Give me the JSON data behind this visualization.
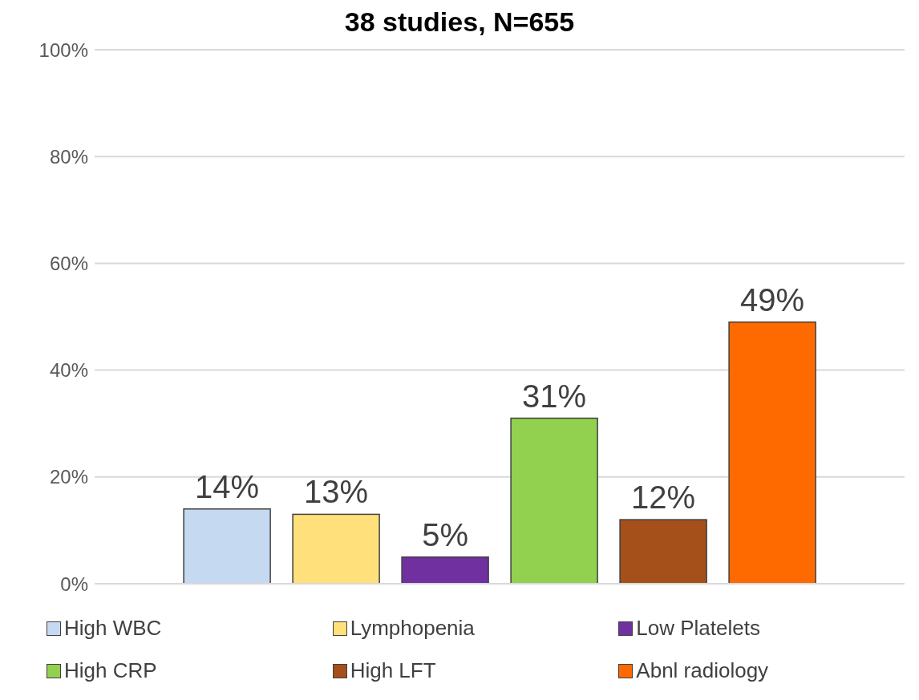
{
  "chart_data": {
    "type": "bar",
    "title": "38 studies, N=655",
    "categories": [
      null
    ],
    "series": [
      {
        "name": "High WBC",
        "color": "#c5d9f1",
        "values": [
          14
        ],
        "value_labels": [
          "14%"
        ]
      },
      {
        "name": "Lymphopenia",
        "color": "#ffe07a",
        "values": [
          13
        ],
        "value_labels": [
          "13%"
        ]
      },
      {
        "name": "Low Platelets",
        "color": "#7030a0",
        "values": [
          5
        ],
        "value_labels": [
          "5%"
        ]
      },
      {
        "name": "High CRP",
        "color": "#92d050",
        "values": [
          31
        ],
        "value_labels": [
          "31%"
        ]
      },
      {
        "name": "High LFT",
        "color": "#a5501b",
        "values": [
          12
        ],
        "value_labels": [
          "12%"
        ]
      },
      {
        "name": "Abnl radiology",
        "color": "#ff6a00",
        "values": [
          49
        ],
        "value_labels": [
          "49%"
        ]
      }
    ],
    "ylim": [
      0,
      100
    ],
    "yticks": [
      {
        "value": 0,
        "label": "0%"
      },
      {
        "value": 20,
        "label": "20%"
      },
      {
        "value": 40,
        "label": "40%"
      },
      {
        "value": 60,
        "label": "60%"
      },
      {
        "value": 80,
        "label": "80%"
      },
      {
        "value": 100,
        "label": "100%"
      }
    ],
    "grid": "y",
    "legend": "bottom"
  }
}
